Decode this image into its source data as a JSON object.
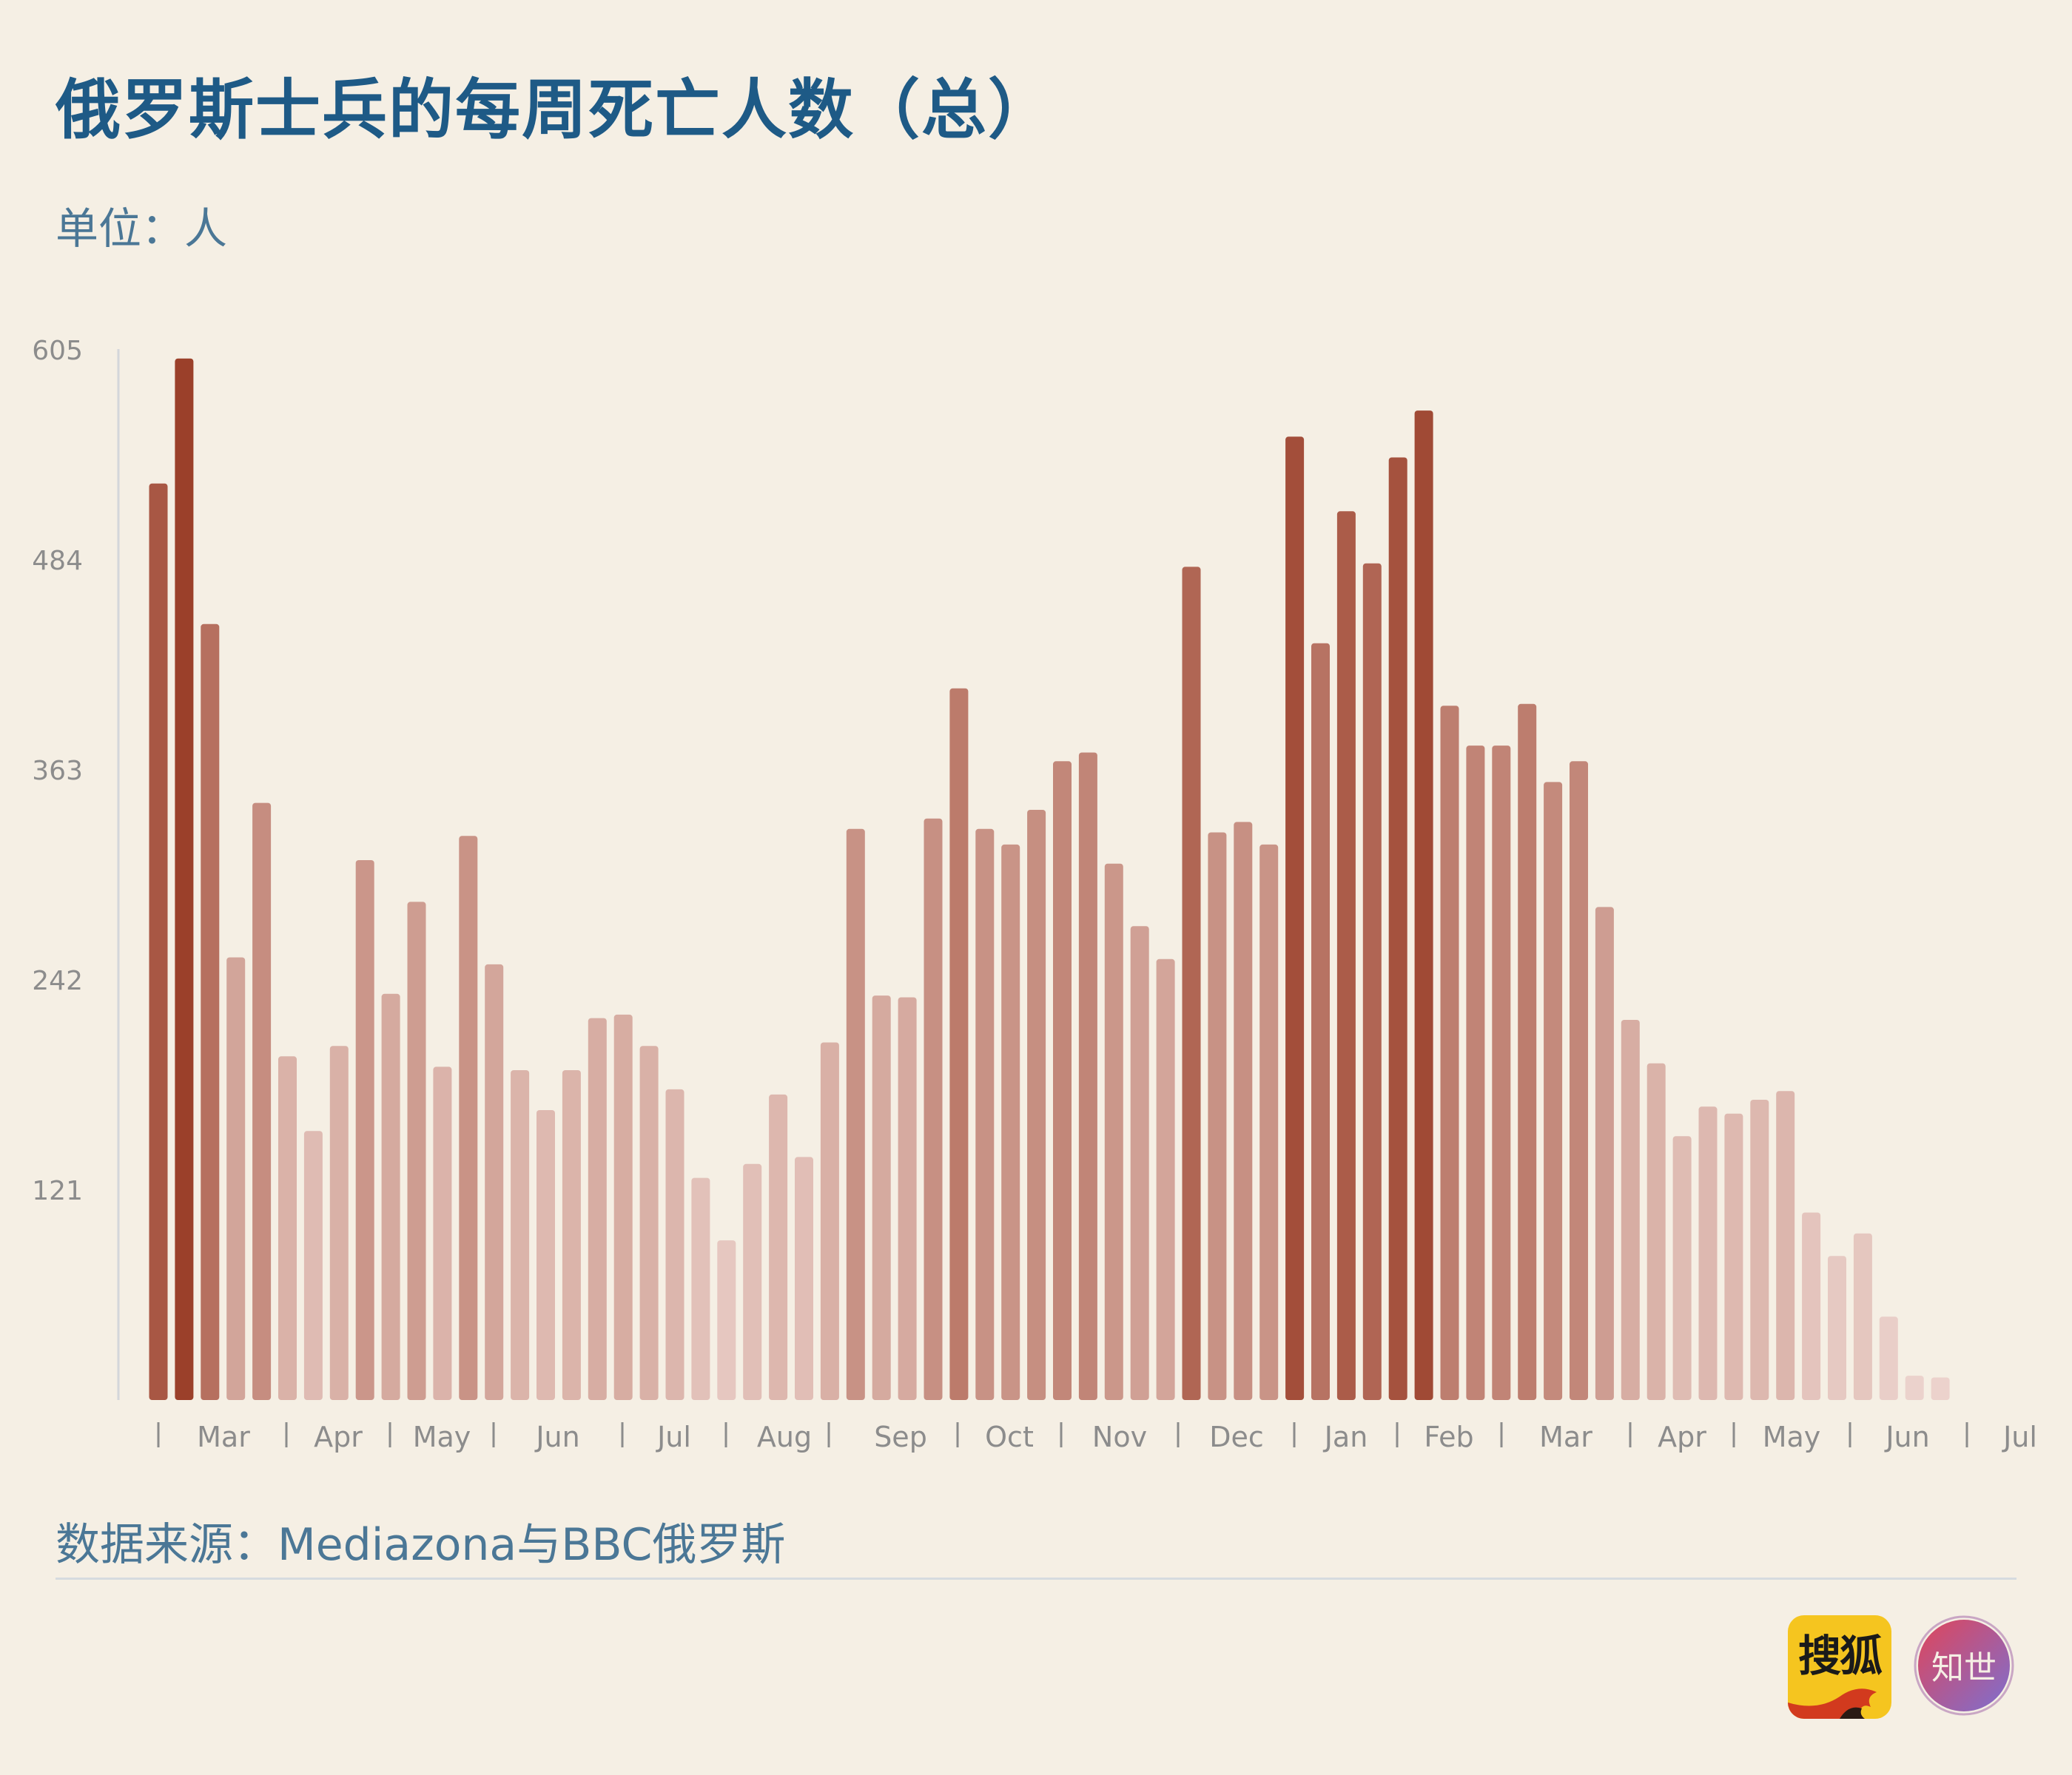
{
  "header": {
    "title": "俄罗斯士兵的每周死亡人数（总）",
    "unit": "单位：人"
  },
  "footer": {
    "source": "数据来源：Mediazona与BBC俄罗斯",
    "logo_sohu_text": "搜狐",
    "logo_zhishi_text": "知世"
  },
  "colors": {
    "background": "#f5efe4",
    "title": "#1e5a86",
    "bar_dark": "#9a3e28",
    "bar_light": "#ecd3cd"
  },
  "chart_data": {
    "type": "bar",
    "title": "俄罗斯士兵的每周死亡人数（总）",
    "ylabel": "",
    "xlabel": "",
    "ylim": [
      0,
      605
    ],
    "yticks": [
      121,
      242,
      363,
      484,
      605
    ],
    "grid": false,
    "legend": "none",
    "month_labels": [
      "Mar",
      "Apr",
      "May",
      "Jun",
      "Jul",
      "Aug",
      "Sep",
      "Oct",
      "Nov",
      "Dec",
      "Jan",
      "Feb",
      "Mar",
      "Apr",
      "May",
      "Jun",
      "Jul"
    ],
    "values": [
      528,
      600,
      447,
      255,
      344,
      198,
      155,
      204,
      311,
      234,
      287,
      192,
      325,
      251,
      190,
      167,
      190,
      220,
      222,
      204,
      179,
      128,
      92,
      136,
      176,
      140,
      206,
      329,
      233,
      232,
      335,
      410,
      329,
      320,
      340,
      368,
      373,
      309,
      273,
      254,
      480,
      327,
      333,
      320,
      555,
      436,
      512,
      482,
      543,
      570,
      400,
      377,
      377,
      401,
      356,
      368,
      284,
      219,
      194,
      152,
      169,
      165,
      173,
      178,
      108,
      83,
      96,
      48,
      14,
      13
    ]
  }
}
